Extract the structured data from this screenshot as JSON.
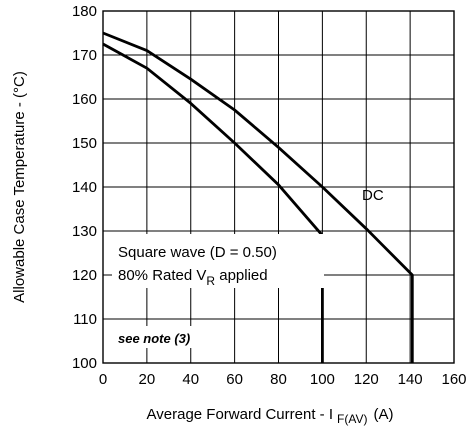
{
  "chart_data": {
    "type": "line",
    "xlabel": {
      "main": "Average Forward Current - I",
      "sub": "F(AV)",
      "unit": "(A)"
    },
    "ylabel": "Allowable Case Temperature - (°C)",
    "xlim": [
      0,
      160
    ],
    "ylim": [
      100,
      180
    ],
    "xticks": [
      "0",
      "20",
      "40",
      "60",
      "80",
      "100",
      "120",
      "140",
      "160"
    ],
    "yticks": [
      "100",
      "110",
      "120",
      "130",
      "140",
      "150",
      "160",
      "170",
      "180"
    ],
    "grid": true,
    "series": [
      {
        "name": "DC",
        "x": [
          0,
          20,
          40,
          60,
          80,
          100,
          120,
          141,
          141
        ],
        "y": [
          175,
          171,
          164.5,
          157.5,
          149,
          140,
          130.5,
          120,
          100
        ]
      },
      {
        "name": "Square wave (D = 0.50)",
        "x": [
          0,
          20,
          40,
          60,
          80,
          100,
          100
        ],
        "y": [
          172.5,
          167,
          159,
          150,
          140.5,
          129,
          100
        ]
      }
    ],
    "annotations": {
      "dc_label": "DC",
      "sq_line1": "Square wave (D = 0.50)",
      "sq_line2_pre": "80% Rated V",
      "sq_line2_sub": "R",
      "sq_line2_post": " applied",
      "note": "see note (3)"
    }
  }
}
